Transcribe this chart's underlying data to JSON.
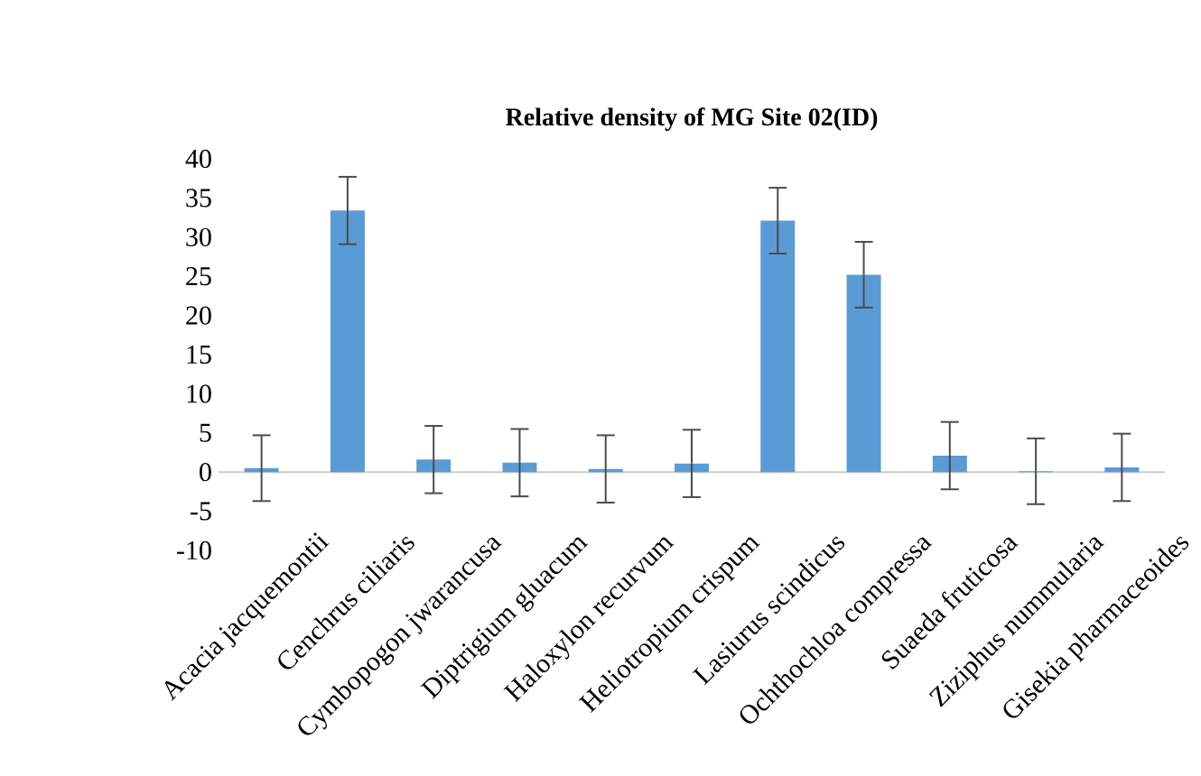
{
  "chart_data": {
    "type": "bar",
    "title": "Relative density of MG Site 02(ID)",
    "categories": [
      "Acacia jacquemontii",
      "Cenchrus ciliaris",
      "Cymbopogon jwarancusa",
      "Diptrigium gluacum",
      "Haloxylon recurvum",
      "Heliotropium crispum",
      "Lasiurus scindicus",
      "Ochthochloa compressa",
      "Suaeda fruticosa",
      "Ziziphus nummularia",
      "Gisekia pharmaceoides"
    ],
    "values": [
      0.5,
      33.4,
      1.6,
      1.2,
      0.4,
      1.1,
      32.1,
      25.2,
      2.1,
      0.1,
      0.6
    ],
    "errors": [
      4.2,
      4.3,
      4.3,
      4.3,
      4.3,
      4.3,
      4.2,
      4.2,
      4.3,
      4.2,
      4.3
    ],
    "color": "#5b9bd5",
    "ylim": [
      -10,
      40
    ],
    "yticks": [
      -10,
      -5,
      0,
      5,
      10,
      15,
      20,
      25,
      30,
      35,
      40
    ]
  }
}
